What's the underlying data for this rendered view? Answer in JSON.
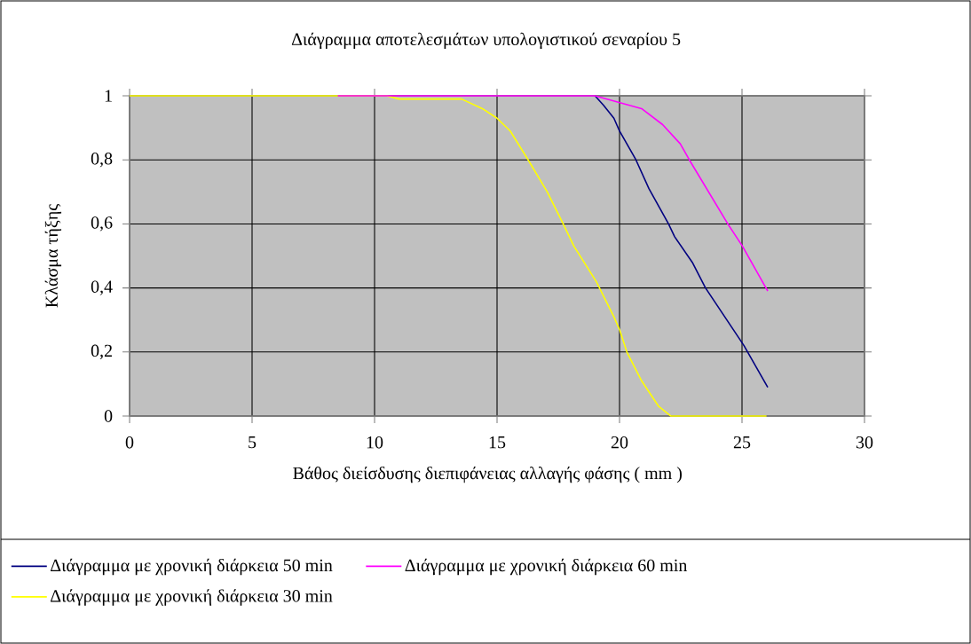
{
  "chart_data": {
    "type": "line",
    "title": "Διάγραμμα αποτελεσμάτων υπολογιστικού σεναρίου 5",
    "xlabel": "Βάθος διείσδυσης διεπιφάνειας αλλαγής φάσης ( mm )",
    "ylabel": "Κλάσμα τήξης",
    "xlim": [
      0,
      30
    ],
    "ylim": [
      0,
      1
    ],
    "xticks": [
      0,
      5,
      10,
      15,
      20,
      25,
      30
    ],
    "yticks": [
      {
        "value": 0,
        "label": "0"
      },
      {
        "value": 0.2,
        "label": "0,2"
      },
      {
        "value": 0.4,
        "label": "0,4"
      },
      {
        "value": 0.6,
        "label": "0,6"
      },
      {
        "value": 0.8,
        "label": "0,8"
      },
      {
        "value": 1,
        "label": "1"
      }
    ],
    "grid": true,
    "legend": "bottom",
    "marker": "none",
    "line_style": "solid",
    "series": [
      {
        "name": "Διάγραμμα με χρονική διάρκεια 50 min",
        "color": "#000080",
        "x": [
          19.0,
          19.35,
          19.77,
          20.0,
          20.67,
          21.2,
          22.0,
          22.25,
          22.97,
          23.51,
          25.08,
          26.05
        ],
        "values": [
          1,
          0.97,
          0.93,
          0.89,
          0.8,
          0.71,
          0.6,
          0.56,
          0.48,
          0.4,
          0.22,
          0.09
        ]
      },
      {
        "name": "Διάγραμμα με χρονική διάρκεια 60 min",
        "color": "#ff00ff",
        "x": [
          8.5,
          19.0,
          19.95,
          20.9,
          21.76,
          22.48,
          22.85,
          24.42,
          25.02,
          26.05
        ],
        "values": [
          1,
          1,
          0.98,
          0.96,
          0.91,
          0.85,
          0.8,
          0.6,
          0.53,
          0.39
        ]
      },
      {
        "name": "Διάγραμμα με χρονική διάρκεια 30 min",
        "color": "#ffff00",
        "x": [
          0,
          10.5,
          11.0,
          13.55,
          14.4,
          15.0,
          15.54,
          16.27,
          17.05,
          17.7,
          18.14,
          19.05,
          19.77,
          20.0,
          20.3,
          20.9,
          21.6,
          22.1,
          23,
          24,
          25,
          26
        ],
        "values": [
          1,
          1,
          0.99,
          0.99,
          0.96,
          0.93,
          0.89,
          0.8,
          0.7,
          0.6,
          0.53,
          0.42,
          0.31,
          0.27,
          0.2,
          0.11,
          0.03,
          0,
          0,
          0,
          0,
          0
        ]
      }
    ]
  }
}
